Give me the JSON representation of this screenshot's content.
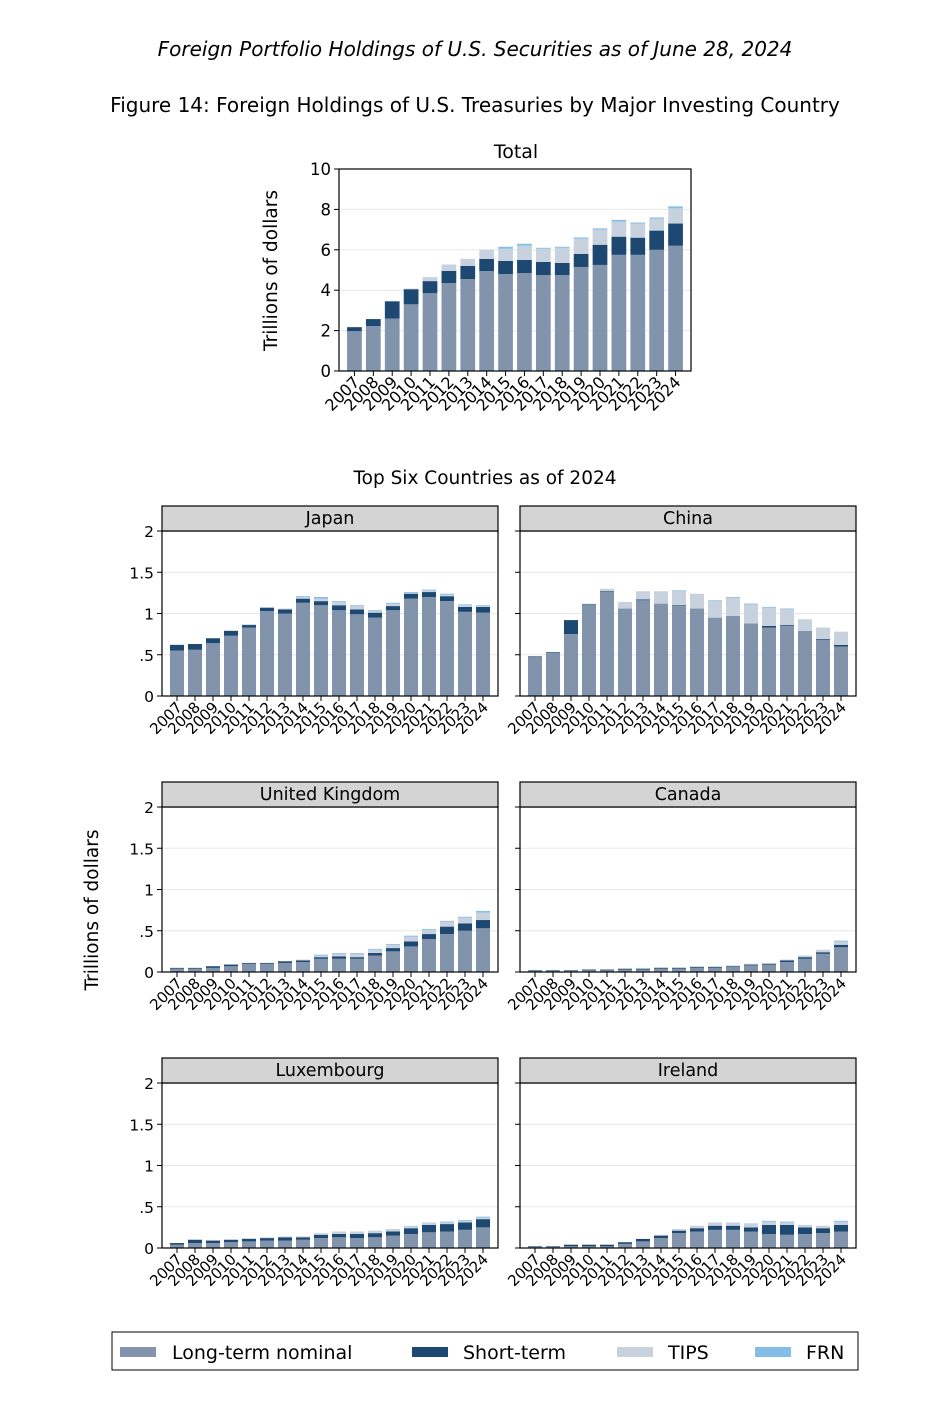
{
  "header": {
    "supertitle": "Foreign Portfolio Holdings of U.S. Securities as of June 28, 2024",
    "title": "Figure 14: Foreign Holdings of U.S. Treasuries by Major Investing Country",
    "subtitle": "Top Six Countries as of 2024"
  },
  "colors": {
    "long_term_nominal": "#8194ab",
    "short_term": "#1d4872",
    "tips": "#c7d2de",
    "frn": "#84bde6",
    "strip_fill": "#d4d4d4",
    "gridline": "#e8e8e8"
  },
  "legend": {
    "items": [
      {
        "key": "long_term_nominal",
        "label": "Long-term nominal"
      },
      {
        "key": "short_term",
        "label": "Short-term"
      },
      {
        "key": "tips",
        "label": "TIPS"
      },
      {
        "key": "frn",
        "label": "FRN"
      }
    ]
  },
  "chart_data": [
    {
      "id": "total",
      "type": "bar",
      "stacked": true,
      "title": "Total",
      "ylabel": "Trillions of dollars",
      "ylim": [
        0,
        10
      ],
      "yticks": [
        0,
        2,
        4,
        6,
        8,
        10
      ],
      "ytick_labels": [
        "0",
        "2",
        "4",
        "6",
        "8",
        "10"
      ],
      "categories": [
        "2007",
        "2008",
        "2009",
        "2010",
        "2011",
        "2012",
        "2013",
        "2014",
        "2015",
        "2016",
        "2017",
        "2018",
        "2019",
        "2020",
        "2021",
        "2022",
        "2023",
        "2024"
      ],
      "series": [
        {
          "name": "Long-term nominal",
          "key": "long_term_nominal",
          "values": [
            1.97,
            2.22,
            2.6,
            3.3,
            3.85,
            4.35,
            4.55,
            4.95,
            4.8,
            4.85,
            4.75,
            4.75,
            5.15,
            5.25,
            5.75,
            5.75,
            6.0,
            6.2
          ]
        },
        {
          "name": "Short-term",
          "key": "short_term",
          "values": [
            0.2,
            0.35,
            0.85,
            0.75,
            0.6,
            0.6,
            0.65,
            0.6,
            0.65,
            0.65,
            0.65,
            0.6,
            0.65,
            1.0,
            0.9,
            0.85,
            0.95,
            1.1
          ]
        },
        {
          "name": "TIPS",
          "key": "tips",
          "values": [
            0.0,
            0.0,
            0.0,
            0.03,
            0.2,
            0.32,
            0.35,
            0.45,
            0.6,
            0.7,
            0.65,
            0.75,
            0.75,
            0.75,
            0.75,
            0.7,
            0.6,
            0.75
          ]
        },
        {
          "name": "FRN",
          "key": "frn",
          "values": [
            0.0,
            0.0,
            0.0,
            0.0,
            0.0,
            0.0,
            0.0,
            0.0,
            0.1,
            0.1,
            0.05,
            0.05,
            0.06,
            0.06,
            0.08,
            0.05,
            0.05,
            0.1
          ]
        }
      ]
    },
    {
      "id": "japan",
      "type": "bar",
      "stacked": true,
      "title": "Japan",
      "ylim": [
        0,
        2
      ],
      "yticks": [
        0,
        0.5,
        1,
        1.5,
        2
      ],
      "ytick_labels": [
        "0",
        ".5",
        "1",
        "1.5",
        "2"
      ],
      "categories": [
        "2007",
        "2008",
        "2009",
        "2010",
        "2011",
        "2012",
        "2013",
        "2014",
        "2015",
        "2016",
        "2017",
        "2018",
        "2019",
        "2020",
        "2021",
        "2022",
        "2023",
        "2024"
      ],
      "series": [
        {
          "name": "Long-term nominal",
          "key": "long_term_nominal",
          "values": [
            0.55,
            0.56,
            0.64,
            0.73,
            0.83,
            1.03,
            1.0,
            1.13,
            1.1,
            1.04,
            0.99,
            0.95,
            1.04,
            1.18,
            1.2,
            1.15,
            1.02,
            1.01
          ]
        },
        {
          "name": "Short-term",
          "key": "short_term",
          "values": [
            0.07,
            0.07,
            0.06,
            0.06,
            0.03,
            0.04,
            0.05,
            0.05,
            0.05,
            0.06,
            0.06,
            0.06,
            0.05,
            0.06,
            0.06,
            0.06,
            0.06,
            0.07
          ]
        },
        {
          "name": "TIPS",
          "key": "tips",
          "values": [
            0.0,
            0.0,
            0.0,
            0.0,
            0.01,
            0.01,
            0.01,
            0.02,
            0.03,
            0.04,
            0.04,
            0.02,
            0.03,
            0.01,
            0.02,
            0.02,
            0.02,
            0.01
          ]
        },
        {
          "name": "FRN",
          "key": "frn",
          "values": [
            0.0,
            0.0,
            0.0,
            0.0,
            0.0,
            0.0,
            0.0,
            0.01,
            0.02,
            0.01,
            0.01,
            0.01,
            0.01,
            0.01,
            0.01,
            0.01,
            0.01,
            0.01
          ]
        }
      ]
    },
    {
      "id": "china",
      "type": "bar",
      "stacked": true,
      "title": "China",
      "ylim": [
        0,
        2
      ],
      "yticks": [
        0,
        0.5,
        1,
        1.5,
        2
      ],
      "ytick_labels": [
        "0",
        ".5",
        "1",
        "1.5",
        "2"
      ],
      "categories": [
        "2007",
        "2008",
        "2009",
        "2010",
        "2011",
        "2012",
        "2013",
        "2014",
        "2015",
        "2016",
        "2017",
        "2018",
        "2019",
        "2020",
        "2021",
        "2022",
        "2023",
        "2024"
      ],
      "series": [
        {
          "name": "Long-term nominal",
          "key": "long_term_nominal",
          "values": [
            0.47,
            0.52,
            0.75,
            1.1,
            1.26,
            1.06,
            1.16,
            1.12,
            1.09,
            1.06,
            0.95,
            0.97,
            0.88,
            0.83,
            0.85,
            0.79,
            0.68,
            0.6
          ]
        },
        {
          "name": "Short-term",
          "key": "short_term",
          "values": [
            0.01,
            0.01,
            0.17,
            0.01,
            0.01,
            0.0,
            0.01,
            0.0,
            0.01,
            0.0,
            0.0,
            0.0,
            0.0,
            0.02,
            0.01,
            0.0,
            0.01,
            0.02
          ]
        },
        {
          "name": "TIPS",
          "key": "tips",
          "values": [
            0.0,
            0.0,
            0.0,
            0.01,
            0.03,
            0.08,
            0.1,
            0.15,
            0.17,
            0.18,
            0.2,
            0.22,
            0.23,
            0.22,
            0.19,
            0.14,
            0.14,
            0.16
          ]
        },
        {
          "name": "FRN",
          "key": "frn",
          "values": [
            0.0,
            0.0,
            0.0,
            0.0,
            0.0,
            0.0,
            0.0,
            0.0,
            0.01,
            0.0,
            0.01,
            0.01,
            0.01,
            0.01,
            0.01,
            0.0,
            0.0,
            0.0
          ]
        }
      ]
    },
    {
      "id": "uk",
      "type": "bar",
      "stacked": true,
      "title": "United Kingdom",
      "ylim": [
        0,
        2
      ],
      "yticks": [
        0,
        0.5,
        1,
        1.5,
        2
      ],
      "ytick_labels": [
        "0",
        ".5",
        "1",
        "1.5",
        "2"
      ],
      "categories": [
        "2007",
        "2008",
        "2009",
        "2010",
        "2011",
        "2012",
        "2013",
        "2014",
        "2015",
        "2016",
        "2017",
        "2018",
        "2019",
        "2020",
        "2021",
        "2022",
        "2023",
        "2024"
      ],
      "series": [
        {
          "name": "Long-term nominal",
          "key": "long_term_nominal",
          "values": [
            0.04,
            0.04,
            0.05,
            0.07,
            0.1,
            0.1,
            0.11,
            0.12,
            0.16,
            0.16,
            0.16,
            0.2,
            0.25,
            0.31,
            0.4,
            0.46,
            0.5,
            0.53
          ]
        },
        {
          "name": "Short-term",
          "key": "short_term",
          "values": [
            0.01,
            0.01,
            0.02,
            0.02,
            0.01,
            0.01,
            0.02,
            0.02,
            0.02,
            0.03,
            0.02,
            0.03,
            0.04,
            0.06,
            0.06,
            0.09,
            0.09,
            0.1
          ]
        },
        {
          "name": "TIPS",
          "key": "tips",
          "values": [
            0.0,
            0.0,
            0.0,
            0.0,
            0.0,
            0.0,
            0.0,
            0.01,
            0.02,
            0.03,
            0.04,
            0.04,
            0.04,
            0.06,
            0.05,
            0.06,
            0.07,
            0.09
          ]
        },
        {
          "name": "FRN",
          "key": "frn",
          "values": [
            0.0,
            0.0,
            0.0,
            0.0,
            0.0,
            0.0,
            0.0,
            0.0,
            0.01,
            0.01,
            0.01,
            0.01,
            0.01,
            0.01,
            0.01,
            0.01,
            0.01,
            0.02
          ]
        }
      ]
    },
    {
      "id": "canada",
      "type": "bar",
      "stacked": true,
      "title": "Canada",
      "ylim": [
        0,
        2
      ],
      "yticks": [
        0,
        0.5,
        1,
        1.5,
        2
      ],
      "ytick_labels": [
        "0",
        ".5",
        "1",
        "1.5",
        "2"
      ],
      "categories": [
        "2007",
        "2008",
        "2009",
        "2010",
        "2011",
        "2012",
        "2013",
        "2014",
        "2015",
        "2016",
        "2017",
        "2018",
        "2019",
        "2020",
        "2021",
        "2022",
        "2023",
        "2024"
      ],
      "series": [
        {
          "name": "Long-term nominal",
          "key": "long_term_nominal",
          "values": [
            0.01,
            0.01,
            0.01,
            0.02,
            0.02,
            0.03,
            0.03,
            0.04,
            0.04,
            0.05,
            0.05,
            0.06,
            0.08,
            0.09,
            0.12,
            0.16,
            0.22,
            0.3
          ]
        },
        {
          "name": "Short-term",
          "key": "short_term",
          "values": [
            0.01,
            0.01,
            0.01,
            0.01,
            0.01,
            0.01,
            0.01,
            0.01,
            0.01,
            0.01,
            0.01,
            0.01,
            0.01,
            0.01,
            0.02,
            0.02,
            0.02,
            0.03
          ]
        },
        {
          "name": "TIPS",
          "key": "tips",
          "values": [
            0.0,
            0.0,
            0.0,
            0.0,
            0.0,
            0.0,
            0.01,
            0.01,
            0.01,
            0.01,
            0.01,
            0.01,
            0.01,
            0.01,
            0.01,
            0.02,
            0.03,
            0.04
          ]
        },
        {
          "name": "FRN",
          "key": "frn",
          "values": [
            0.0,
            0.0,
            0.0,
            0.0,
            0.0,
            0.0,
            0.0,
            0.0,
            0.0,
            0.0,
            0.0,
            0.0,
            0.0,
            0.0,
            0.0,
            0.0,
            0.0,
            0.01
          ]
        }
      ]
    },
    {
      "id": "luxembourg",
      "type": "bar",
      "stacked": true,
      "title": "Luxembourg",
      "ylim": [
        0,
        2
      ],
      "yticks": [
        0,
        0.5,
        1,
        1.5,
        2
      ],
      "ytick_labels": [
        "0",
        ".5",
        "1",
        "1.5",
        "2"
      ],
      "categories": [
        "2007",
        "2008",
        "2009",
        "2010",
        "2011",
        "2012",
        "2013",
        "2014",
        "2015",
        "2016",
        "2017",
        "2018",
        "2019",
        "2020",
        "2021",
        "2022",
        "2023",
        "2024"
      ],
      "series": [
        {
          "name": "Long-term nominal",
          "key": "long_term_nominal",
          "values": [
            0.04,
            0.06,
            0.06,
            0.07,
            0.08,
            0.09,
            0.09,
            0.1,
            0.12,
            0.13,
            0.12,
            0.13,
            0.15,
            0.17,
            0.19,
            0.2,
            0.22,
            0.25
          ]
        },
        {
          "name": "Short-term",
          "key": "short_term",
          "values": [
            0.02,
            0.04,
            0.03,
            0.03,
            0.03,
            0.03,
            0.04,
            0.03,
            0.04,
            0.04,
            0.05,
            0.05,
            0.05,
            0.07,
            0.09,
            0.09,
            0.09,
            0.1
          ]
        },
        {
          "name": "TIPS",
          "key": "tips",
          "values": [
            0.0,
            0.0,
            0.0,
            0.0,
            0.01,
            0.01,
            0.01,
            0.01,
            0.02,
            0.03,
            0.03,
            0.03,
            0.03,
            0.03,
            0.03,
            0.02,
            0.02,
            0.02
          ]
        },
        {
          "name": "FRN",
          "key": "frn",
          "values": [
            0.0,
            0.0,
            0.0,
            0.0,
            0.0,
            0.0,
            0.0,
            0.0,
            0.0,
            0.0,
            0.0,
            0.0,
            0.0,
            0.0,
            0.0,
            0.01,
            0.01,
            0.01
          ]
        }
      ]
    },
    {
      "id": "ireland",
      "type": "bar",
      "stacked": true,
      "title": "Ireland",
      "ylim": [
        0,
        2
      ],
      "yticks": [
        0,
        0.5,
        1,
        1.5,
        2
      ],
      "ytick_labels": [
        "0",
        ".5",
        "1",
        "1.5",
        "2"
      ],
      "categories": [
        "2007",
        "2008",
        "2009",
        "2010",
        "2011",
        "2012",
        "2013",
        "2014",
        "2015",
        "2016",
        "2017",
        "2018",
        "2019",
        "2020",
        "2021",
        "2022",
        "2023",
        "2024"
      ],
      "series": [
        {
          "name": "Long-term nominal",
          "key": "long_term_nominal",
          "values": [
            0.01,
            0.01,
            0.02,
            0.02,
            0.02,
            0.05,
            0.08,
            0.12,
            0.18,
            0.2,
            0.22,
            0.22,
            0.2,
            0.17,
            0.16,
            0.17,
            0.18,
            0.2
          ]
        },
        {
          "name": "Short-term",
          "key": "short_term",
          "values": [
            0.01,
            0.01,
            0.02,
            0.02,
            0.02,
            0.02,
            0.03,
            0.03,
            0.03,
            0.04,
            0.05,
            0.05,
            0.05,
            0.11,
            0.12,
            0.08,
            0.06,
            0.08
          ]
        },
        {
          "name": "TIPS",
          "key": "tips",
          "values": [
            0.0,
            0.0,
            0.0,
            0.0,
            0.0,
            0.0,
            0.0,
            0.01,
            0.02,
            0.03,
            0.04,
            0.04,
            0.05,
            0.04,
            0.03,
            0.03,
            0.03,
            0.04
          ]
        },
        {
          "name": "FRN",
          "key": "frn",
          "values": [
            0.0,
            0.0,
            0.0,
            0.0,
            0.0,
            0.0,
            0.0,
            0.0,
            0.0,
            0.0,
            0.0,
            0.0,
            0.0,
            0.01,
            0.01,
            0.0,
            0.0,
            0.01
          ]
        }
      ]
    }
  ]
}
